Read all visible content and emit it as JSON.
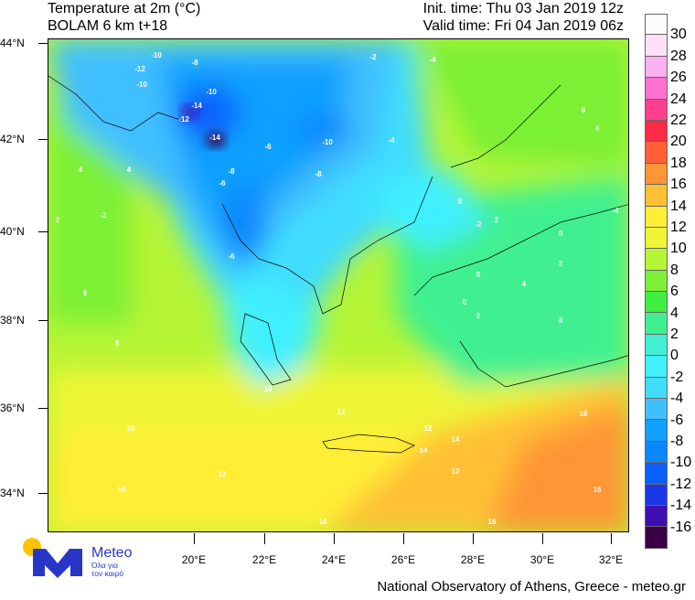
{
  "header": {
    "title": "Temperature at 2m (°C)",
    "subtitle": "BOLAM 6 km t+18",
    "init_time": "Init. time: Thu 03 Jan 2019 12z",
    "valid_time": "Valid time: Fri 04 Jan 2019 06z"
  },
  "axes": {
    "lat_labels": [
      "44°N",
      "42°N",
      "40°N",
      "38°N",
      "36°N",
      "34°N"
    ],
    "lon_labels": [
      "20°E",
      "22°E",
      "24°E",
      "26°E",
      "28°E",
      "30°E",
      "32°E"
    ]
  },
  "legend": {
    "labels": [
      "30",
      "28",
      "26",
      "24",
      "22",
      "20",
      "18",
      "16",
      "14",
      "12",
      "10",
      "8",
      "6",
      "4",
      "2",
      "0",
      "-2",
      "-4",
      "-6",
      "-8",
      "-10",
      "-12",
      "-14",
      "-16"
    ],
    "colors": [
      "#fdfbff",
      "#ffe0f8",
      "#ffb0f0",
      "#ff70d0",
      "#ff4090",
      "#ff2a45",
      "#ff6035",
      "#ff9535",
      "#ffc035",
      "#ffee35",
      "#eef535",
      "#b5f535",
      "#7cf035",
      "#40f040",
      "#40f090",
      "#40f0d5",
      "#40f0ff",
      "#40ddff",
      "#40bfff",
      "#10a0ff",
      "#0c88ff",
      "#0860ff",
      "#1a38e8",
      "#3e10b0",
      "#3a0045"
    ]
  },
  "contour_labels": [
    "-10",
    "-12",
    "-10",
    "-14",
    "-12",
    "-14",
    "-8",
    "-10",
    "-8",
    "-6",
    "-10",
    "-8",
    "-6",
    "-4",
    "-2",
    "-4",
    "4",
    "2",
    "4",
    "6",
    "4",
    "0",
    "2",
    "4",
    "-2",
    "0",
    "-4",
    "2",
    "0",
    "-6",
    "-2",
    "8",
    "6",
    "8",
    "10",
    "10",
    "12",
    "12",
    "12",
    "14",
    "14",
    "16",
    "16",
    "16",
    "14",
    "12",
    "10",
    "0",
    "2"
  ],
  "logo": {
    "name": "Meteo",
    "tagline_1": "Όλα για",
    "tagline_2": "τον καιρό"
  },
  "footer": "National Observatory of Athens, Greece - meteo.gr"
}
